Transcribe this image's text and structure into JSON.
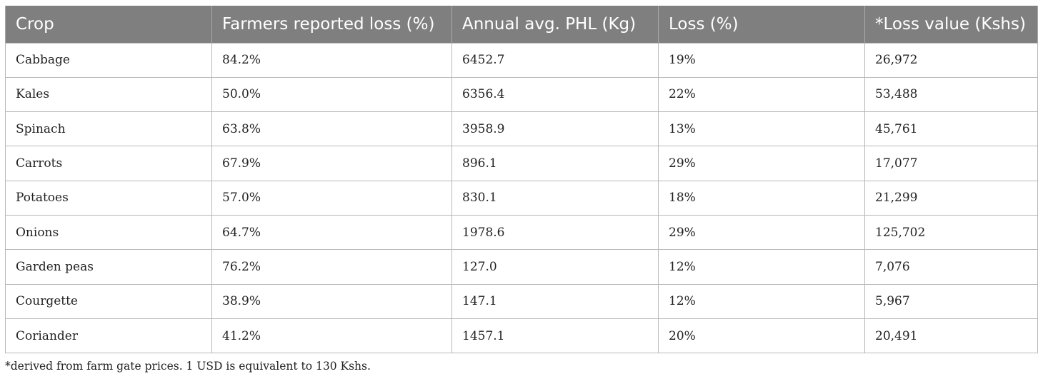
{
  "table": {
    "headers": [
      "Crop",
      "Farmers reported loss (%)",
      "Annual avg. PHL (Kg)",
      "Loss (%)",
      "*Loss value (Kshs)"
    ],
    "rows": [
      [
        "Cabbage",
        "84.2%",
        "6452.7",
        "19%",
        "26,972"
      ],
      [
        "Kales",
        "50.0%",
        "6356.4",
        "22%",
        "53,488"
      ],
      [
        "Spinach",
        "63.8%",
        "3958.9",
        "13%",
        "45,761"
      ],
      [
        "Carrots",
        "67.9%",
        "896.1",
        "29%",
        "17,077"
      ],
      [
        "Potatoes",
        "57.0%",
        "830.1",
        "18%",
        "21,299"
      ],
      [
        "Onions",
        "64.7%",
        "1978.6",
        "29%",
        "125,702"
      ],
      [
        "Garden peas",
        "76.2%",
        "127.0",
        "12%",
        "7,076"
      ],
      [
        "Courgette",
        "38.9%",
        "147.1",
        "12%",
        "5,967"
      ],
      [
        "Coriander",
        "41.2%",
        "1457.1",
        "20%",
        "20,491"
      ]
    ]
  },
  "footnote": "*derived from farm gate prices. 1 USD is equivalent to 130 Kshs.",
  "colors": {
    "header_bg": "#7f7f7f",
    "header_text": "#ffffff",
    "cell_border": "#b8b8b8"
  }
}
